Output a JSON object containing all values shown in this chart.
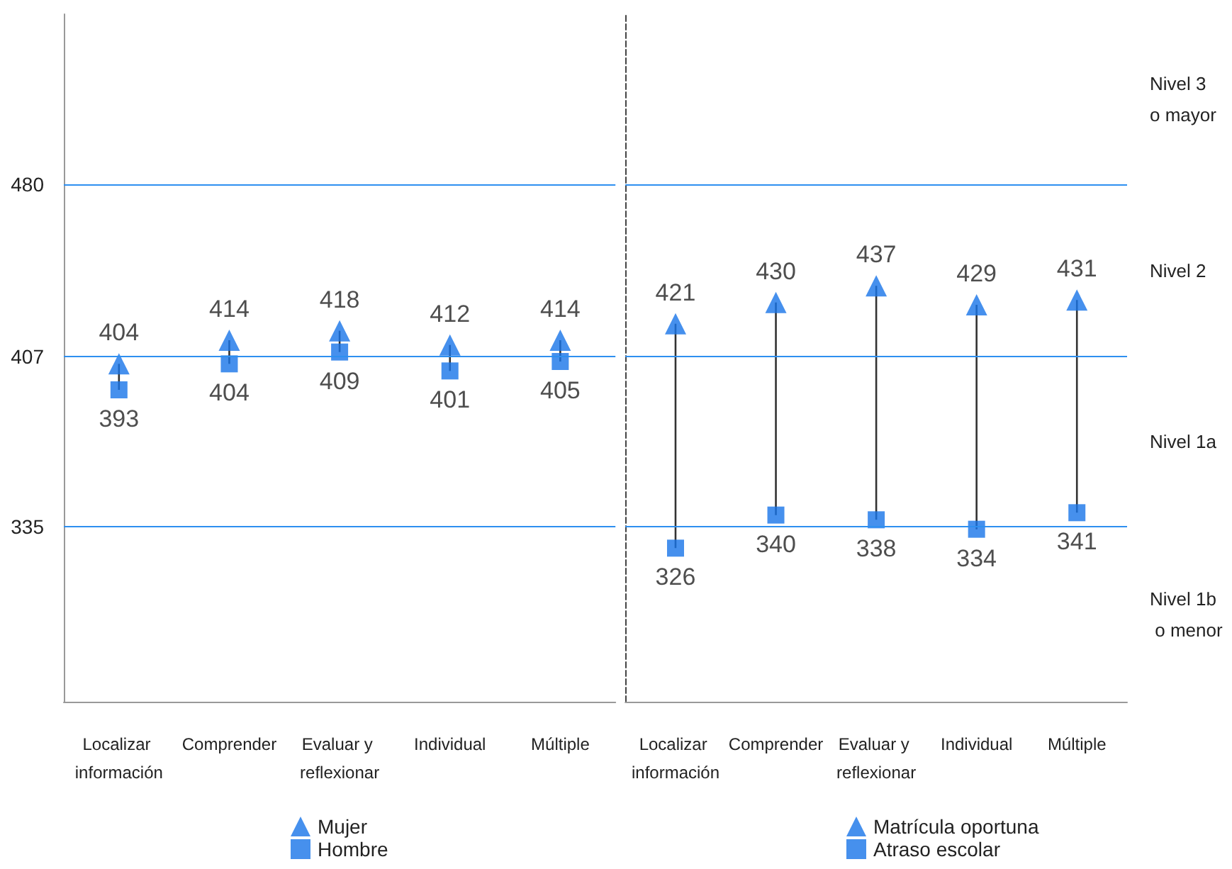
{
  "chart_data": [
    {
      "type": "scatter",
      "categories": [
        "Localizar información",
        "Comprender",
        "Evaluar y reflexionar",
        "Individual",
        "Múltiple"
      ],
      "series": [
        {
          "name": "Mujer",
          "color": "#1874e8",
          "marker": "triangle",
          "values": [
            404,
            414,
            418,
            412,
            414
          ]
        },
        {
          "name": "Hombre",
          "color": "#1874e8",
          "marker": "square",
          "values": [
            393,
            404,
            409,
            401,
            405
          ]
        }
      ],
      "ylim": [
        261,
        552
      ],
      "yticks": [
        335,
        407,
        480
      ],
      "grid": "y",
      "data_labels": true,
      "legend": "bottom"
    },
    {
      "type": "scatter",
      "categories": [
        "Localizar información",
        "Comprender",
        "Evaluar y reflexionar",
        "Individual",
        "Múltiple"
      ],
      "series": [
        {
          "name": "Matrícula oportuna",
          "color": "#1874e8",
          "marker": "triangle",
          "values": [
            421,
            430,
            437,
            429,
            431
          ]
        },
        {
          "name": "Atraso escolar",
          "color": "#1874e8",
          "marker": "square",
          "values": [
            326,
            340,
            338,
            334,
            341
          ]
        }
      ],
      "ylim": [
        261,
        552
      ],
      "yticks": [
        335,
        407,
        480
      ],
      "grid": "y",
      "data_labels": true,
      "legend": "bottom",
      "tick_labels": "x",
      "annotations": [
        "Nivel 3 o mayor",
        "Nivel 2",
        "Nivel 1a",
        "Nivel 1b o menor"
      ]
    }
  ]
}
